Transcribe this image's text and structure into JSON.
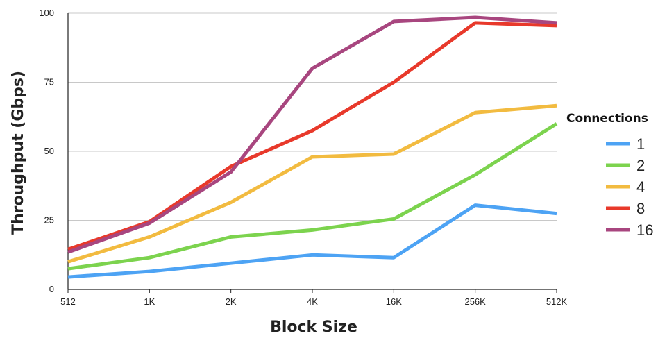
{
  "chart_data": {
    "type": "line",
    "xlabel": "Block Size",
    "ylabel": "Throughput (Gbps)",
    "categories": [
      "512",
      "1K",
      "2K",
      "4K",
      "16K",
      "256K",
      "512K"
    ],
    "ylim": [
      0,
      100
    ],
    "yticks": [
      "0",
      "25",
      "50",
      "75",
      "100"
    ],
    "grid": true,
    "legend": {
      "title": "Connections",
      "position": "right"
    },
    "series": [
      {
        "name": "1",
        "color": "#4da3f4",
        "values": [
          4.5,
          6.5,
          9.5,
          12.5,
          11.5,
          30.5,
          27.5
        ]
      },
      {
        "name": "2",
        "color": "#7cd34e",
        "values": [
          7.5,
          11.5,
          19,
          21.5,
          25.5,
          41.5,
          60
        ]
      },
      {
        "name": "4",
        "color": "#f2bb40",
        "values": [
          10,
          19,
          31.5,
          48,
          49,
          64,
          66.5
        ]
      },
      {
        "name": "8",
        "color": "#e8392b",
        "values": [
          14.5,
          24.5,
          44.5,
          57.5,
          75,
          96.5,
          95.5
        ]
      },
      {
        "name": "16",
        "color": "#a8467f",
        "values": [
          13.5,
          24,
          42.5,
          80,
          97,
          98.5,
          96.5
        ]
      }
    ]
  }
}
